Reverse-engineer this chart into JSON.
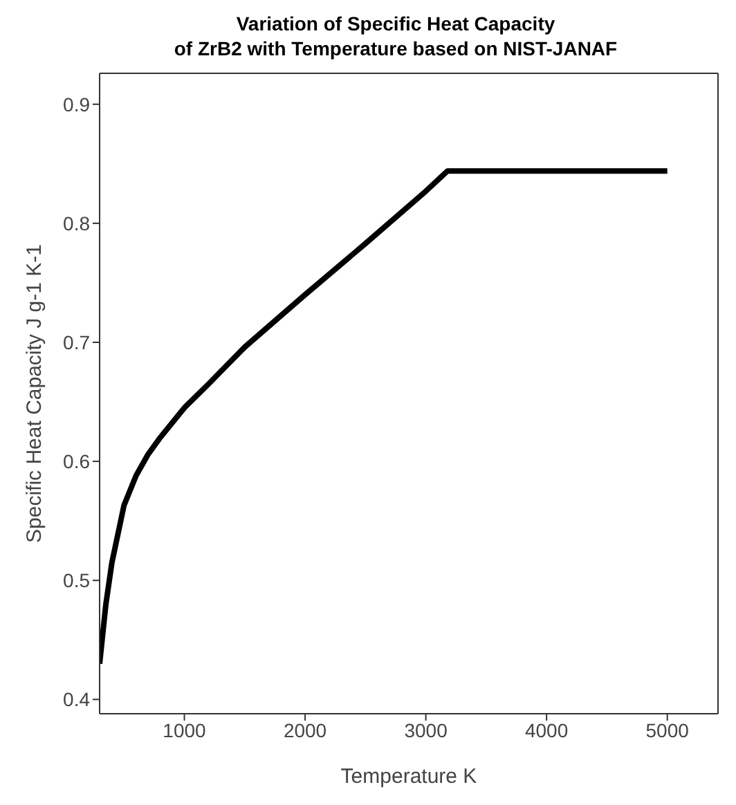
{
  "chart_data": {
    "type": "line",
    "title": "Variation of Specific Heat Capacity\nof ZrB2 with Temperature based on NIST-JANAF",
    "xlabel": "Temperature K",
    "ylabel": "Specific Heat Capacity J g-1 K-1",
    "x": [
      298,
      350,
      400,
      500,
      600,
      700,
      800,
      1000,
      1200,
      1500,
      2000,
      2500,
      3000,
      3180,
      5000
    ],
    "series": [
      {
        "color": "#000000",
        "values": [
          0.43,
          0.48,
          0.515,
          0.563,
          0.588,
          0.606,
          0.62,
          0.645,
          0.665,
          0.696,
          0.74,
          0.783,
          0.827,
          0.844,
          0.844
        ]
      }
    ],
    "xlim": [
      298,
      5420
    ],
    "xticks": [
      1000,
      2000,
      3000,
      4000,
      5000
    ],
    "ylim": [
      0.388,
      0.926
    ],
    "yticks": [
      0.4,
      0.5,
      0.6,
      0.7,
      0.8,
      0.9
    ],
    "grid": false,
    "legend": false,
    "marker": "none",
    "line_style": "solid"
  }
}
